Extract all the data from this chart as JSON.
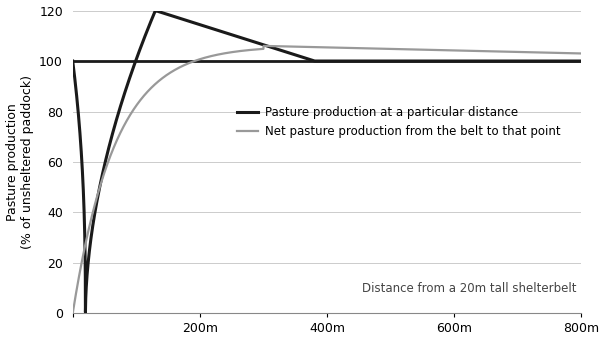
{
  "ylabel_line1": "Pasture production",
  "ylabel_line2": "(% of unsheltered paddock)",
  "xlabel": "Distance from a 20m tall shelterbelt",
  "xlim": [
    0,
    800
  ],
  "ylim": [
    0,
    120
  ],
  "yticks": [
    0,
    20,
    40,
    60,
    80,
    100,
    120
  ],
  "xticks": [
    0,
    200,
    400,
    600,
    800
  ],
  "xtick_labels": [
    "",
    "200m",
    "400m",
    "600m",
    "800m"
  ],
  "baseline_y": 100,
  "black_color": "#1a1a1a",
  "gray_color": "#999999",
  "black_lw": 2.2,
  "gray_lw": 1.6,
  "black_label": "Pasture production at a particular distance",
  "gray_label": "Net pasture production from the belt to that point",
  "background_color": "#ffffff",
  "grid_color": "#cccccc",
  "grid_lw": 0.7
}
